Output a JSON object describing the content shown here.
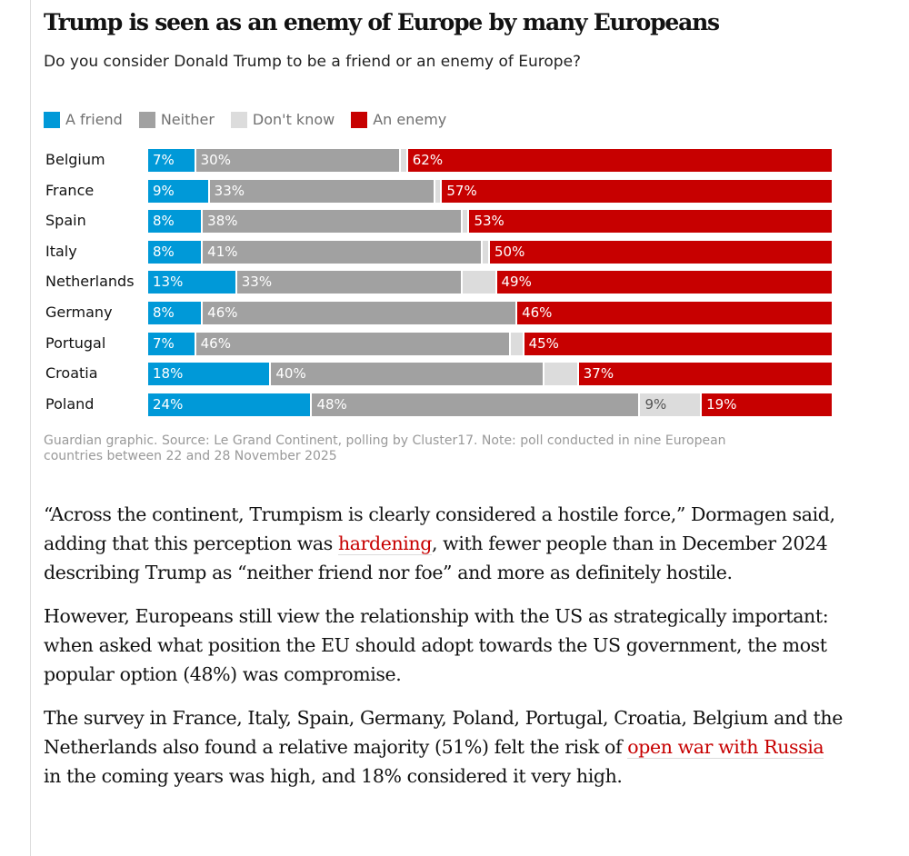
{
  "chart_data": {
    "type": "bar",
    "orientation": "horizontal-stacked-100",
    "title": "Trump is seen as an enemy of Europe by many Europeans",
    "subtitle": "Do you consider Donald Trump to be a friend or an enemy of Europe?",
    "legend_position": "top-left",
    "categories": [
      "Belgium",
      "France",
      "Spain",
      "Italy",
      "Netherlands",
      "Germany",
      "Portugal",
      "Croatia",
      "Poland"
    ],
    "series": [
      {
        "name": "A friend",
        "color": "#0099d8",
        "values": [
          7,
          9,
          8,
          8,
          13,
          8,
          7,
          18,
          24
        ],
        "labeled": [
          true,
          true,
          true,
          true,
          true,
          true,
          true,
          true,
          true
        ]
      },
      {
        "name": "Neither",
        "color": "#a1a1a1",
        "values": [
          30,
          33,
          38,
          41,
          33,
          46,
          46,
          40,
          48
        ],
        "labeled": [
          true,
          true,
          true,
          true,
          true,
          true,
          true,
          true,
          true
        ]
      },
      {
        "name": "Don't know",
        "color": "#dcdcdc",
        "values": [
          1,
          1,
          1,
          1,
          5,
          0,
          2,
          5,
          9
        ],
        "labeled": [
          false,
          false,
          false,
          false,
          false,
          false,
          false,
          false,
          true
        ]
      },
      {
        "name": "An enemy",
        "color": "#c70000",
        "values": [
          62,
          57,
          53,
          50,
          49,
          46,
          45,
          37,
          19
        ],
        "labeled": [
          true,
          true,
          true,
          true,
          true,
          true,
          true,
          true,
          true
        ]
      }
    ],
    "unit": "%",
    "xlim": [
      0,
      100
    ],
    "source": "Guardian graphic. Source: Le Grand Continent, polling by Cluster17. Note: poll conducted in nine European countries between 22 and 28 November 2025"
  },
  "article": {
    "p1_a": "“Across the continent, Trumpism is clearly considered a hostile force,” Dormagen said, adding that this perception was ",
    "p1_link": "hardening",
    "p1_b": ", with fewer people than in December 2024 describing Trump as “neither friend nor foe” and more as definitely hostile.",
    "p2": "However, Europeans still view the relationship with the US as strategically important: when asked what position the EU should adopt towards the US government, the most popular option (48%) was compromise.",
    "p3_a": "The survey in France, Italy, Spain, Germany, Poland, Portugal, Croatia, Belgium and the Netherlands also found a relative majority (51%) felt the risk of ",
    "p3_link": "open war with Russia",
    "p3_b": " in the coming years was high, and 18% considered it very high."
  }
}
